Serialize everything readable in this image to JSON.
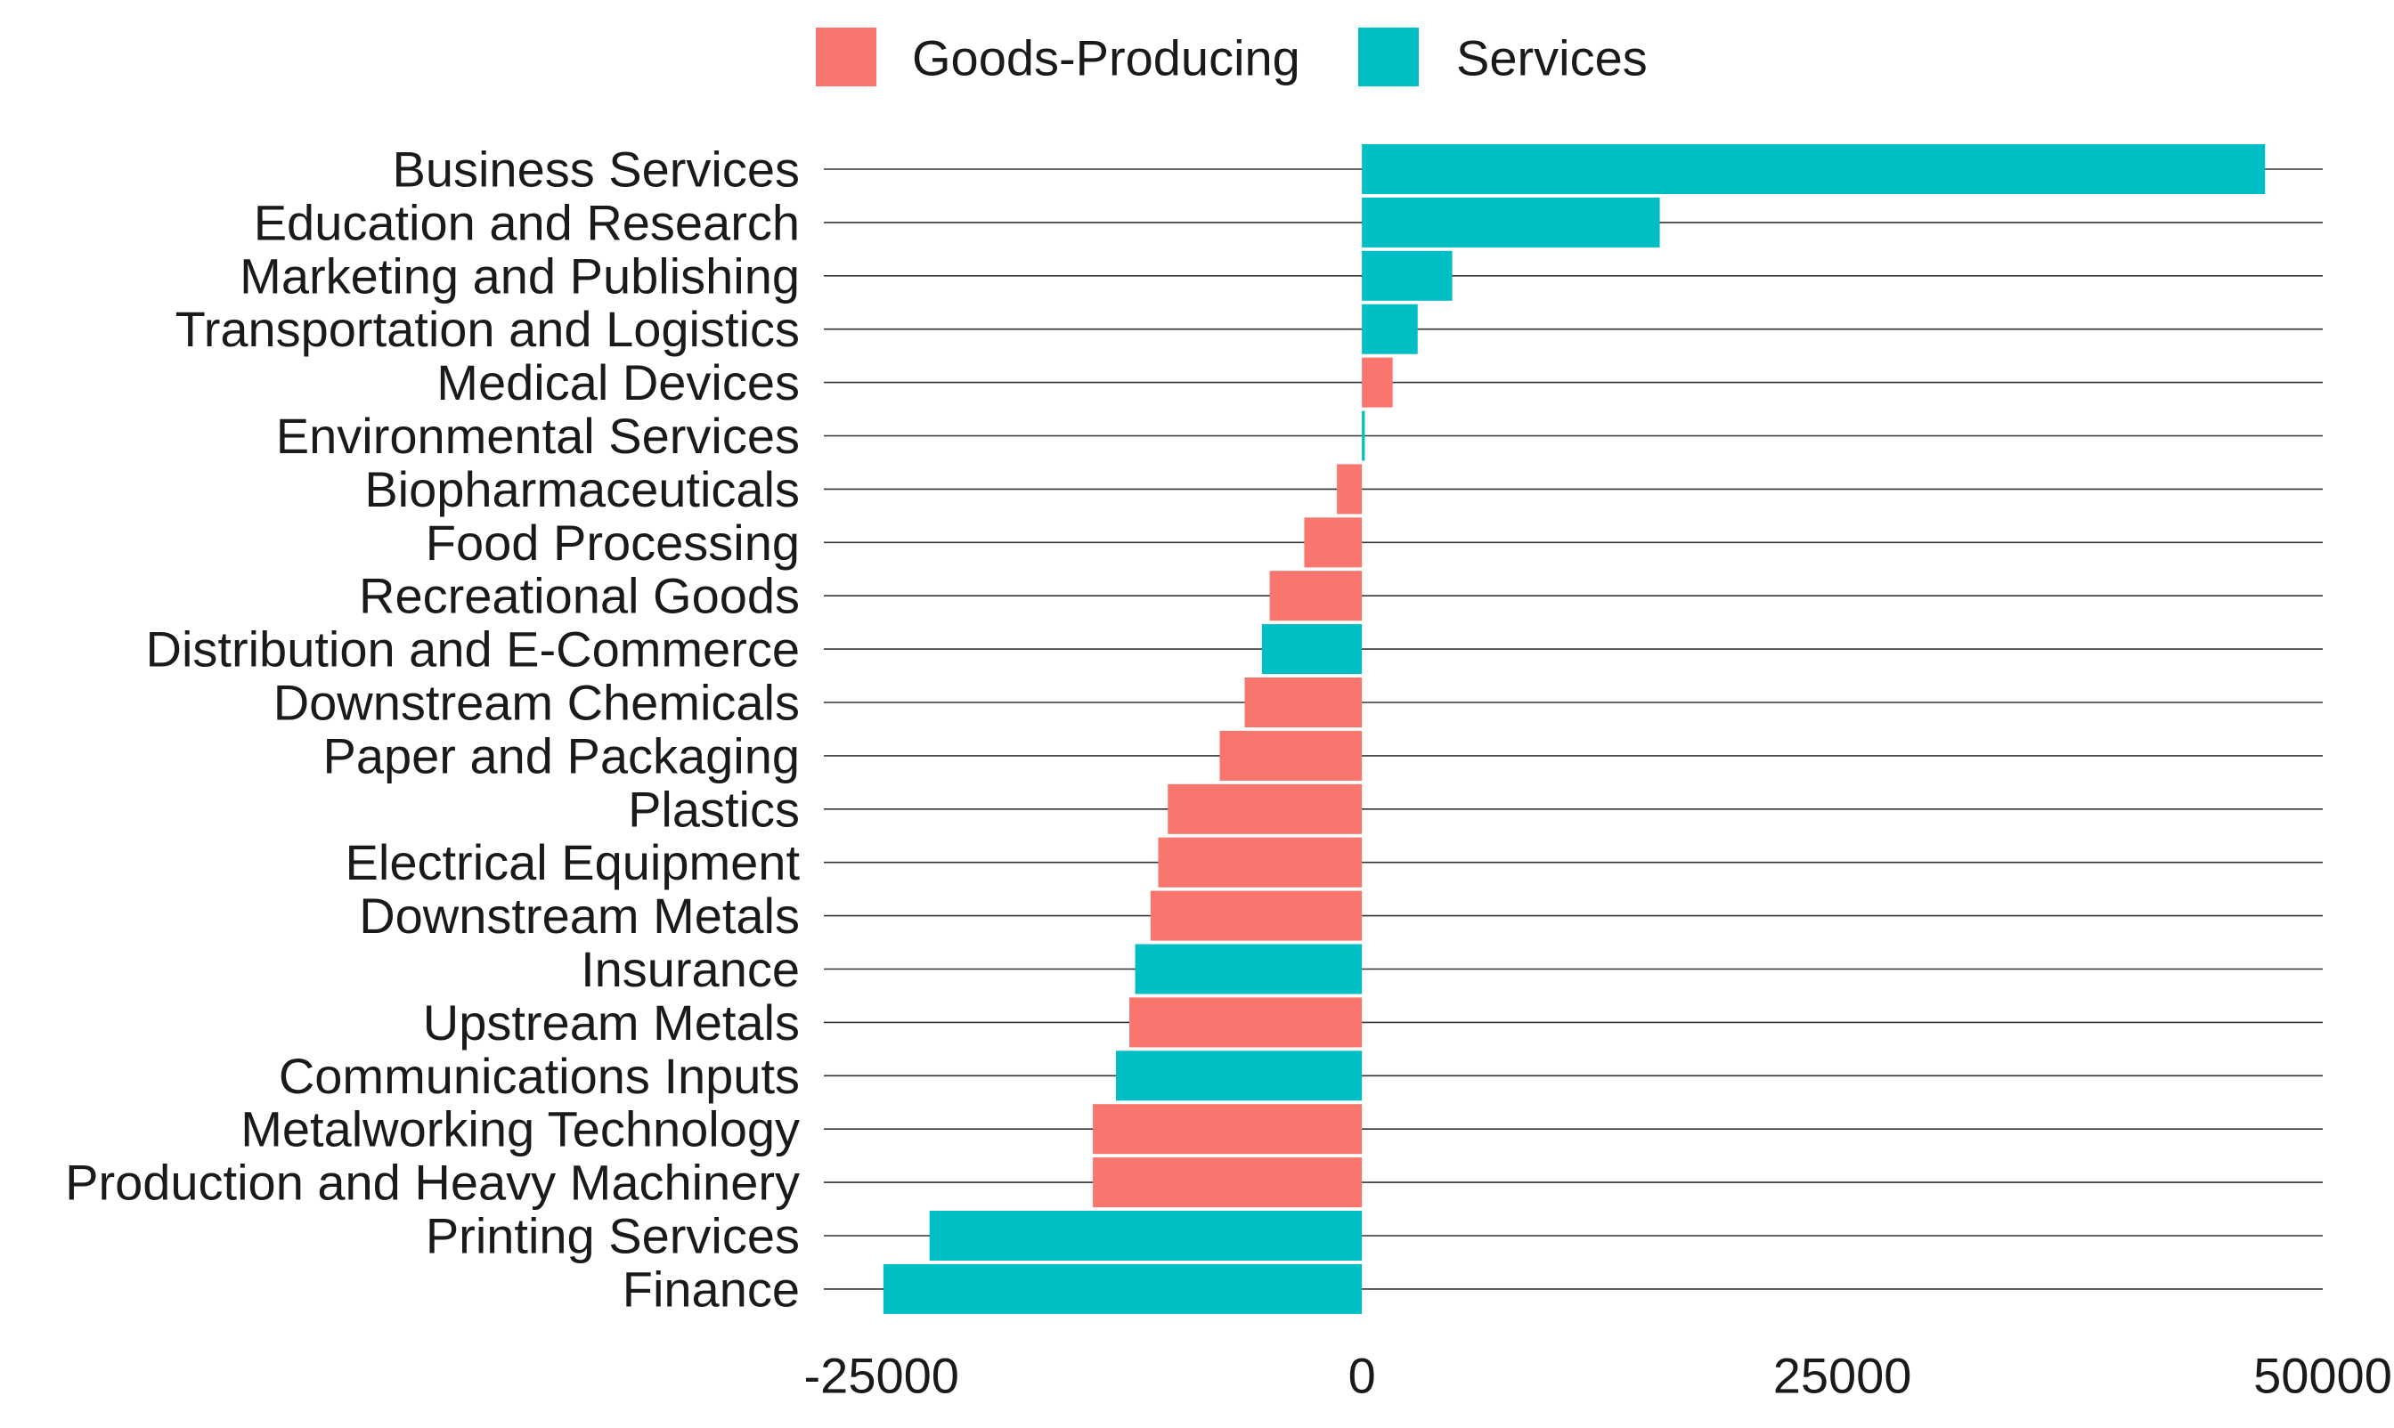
{
  "chart_data": {
    "type": "bar",
    "orientation": "horizontal",
    "title": "",
    "xlabel": "",
    "ylabel": "",
    "xlim": [
      -28000,
      50000
    ],
    "x_ticks": [
      -25000,
      0,
      25000,
      50000
    ],
    "x_tick_labels": [
      "-25000",
      "0",
      "25000",
      "50000"
    ],
    "grid": "horizontal lines at each category",
    "legend": {
      "position": "top-center",
      "entries": [
        {
          "name": "Goods-Producing",
          "color": "#F8766D"
        },
        {
          "name": "Services",
          "color": "#00BFC4"
        }
      ]
    },
    "categories": [
      "Business Services",
      "Education and Research",
      "Marketing and Publishing",
      "Transportation and Logistics",
      "Medical Devices",
      "Environmental Services",
      "Biopharmaceuticals",
      "Food Processing",
      "Recreational Goods",
      "Distribution and E-Commerce",
      "Downstream Chemicals",
      "Paper and Packaging",
      "Plastics",
      "Electrical Equipment",
      "Downstream Metals",
      "Insurance",
      "Upstream Metals",
      "Communications Inputs",
      "Metalworking Technology",
      "Production and Heavy Machinery",
      "Printing Services",
      "Finance"
    ],
    "values": [
      47000,
      15500,
      4700,
      2900,
      1600,
      150,
      -1300,
      -3000,
      -4800,
      -5200,
      -6100,
      -7400,
      -10100,
      -10600,
      -11000,
      -11800,
      -12100,
      -12800,
      -14000,
      -14000,
      -22500,
      -24900
    ],
    "groups": [
      "Services",
      "Services",
      "Services",
      "Services",
      "Goods-Producing",
      "Services",
      "Goods-Producing",
      "Goods-Producing",
      "Goods-Producing",
      "Services",
      "Goods-Producing",
      "Goods-Producing",
      "Goods-Producing",
      "Goods-Producing",
      "Goods-Producing",
      "Services",
      "Goods-Producing",
      "Services",
      "Goods-Producing",
      "Goods-Producing",
      "Services",
      "Services"
    ]
  }
}
